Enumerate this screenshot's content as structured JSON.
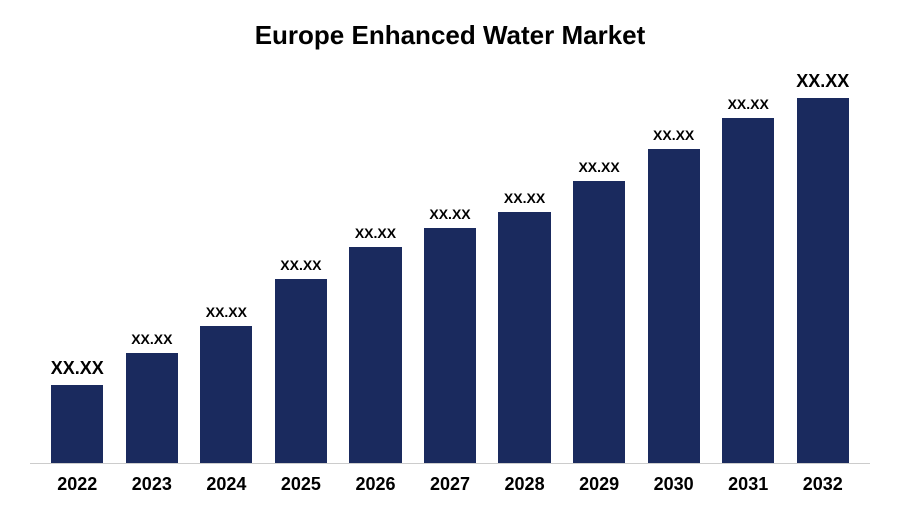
{
  "chart": {
    "type": "bar",
    "title": "Europe Enhanced Water Market",
    "title_fontsize": 26,
    "title_color": "#000000",
    "categories": [
      "2022",
      "2023",
      "2024",
      "2025",
      "2026",
      "2027",
      "2028",
      "2029",
      "2030",
      "2031",
      "2032"
    ],
    "value_labels": [
      "XX.XX",
      "XX.XX",
      "XX.XX",
      "XX.XX",
      "XX.XX",
      "XX.XX",
      "XX.XX",
      "XX.XX",
      "XX.XX",
      "XX.XX",
      "XX.XX"
    ],
    "bar_heights_pct": [
      20,
      28,
      35,
      47,
      55,
      60,
      64,
      72,
      80,
      88,
      94
    ],
    "bar_color": "#1a2a5e",
    "label_fontsize_small": 14,
    "label_fontsize_large": 18,
    "large_label_indices": [
      0,
      10
    ],
    "x_label_fontsize": 18,
    "background_color": "#ffffff",
    "axis_line_color": "#cccccc",
    "bar_width_ratio": 0.7
  }
}
